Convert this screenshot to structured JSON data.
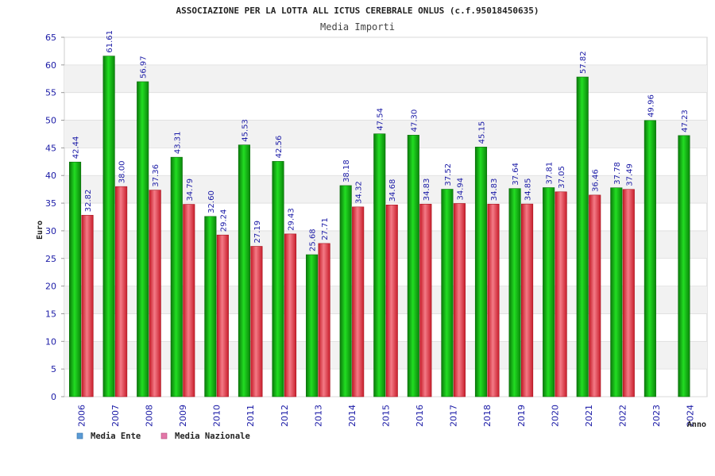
{
  "chart_data": {
    "type": "bar",
    "title": "ASSOCIAZIONE PER LA LOTTA ALL ICTUS CEREBRALE ONLUS (c.f.95018450635)",
    "subtitle": "Media Importi",
    "xlabel": "Anno",
    "ylabel": "Euro",
    "ylim": [
      0,
      65
    ],
    "yticks": [
      "0",
      "5",
      "10",
      "15",
      "20",
      "25",
      "30",
      "35",
      "40",
      "45",
      "50",
      "55",
      "60",
      "65"
    ],
    "categories": [
      "2006",
      "2007",
      "2008",
      "2009",
      "2010",
      "2011",
      "2012",
      "2013",
      "2014",
      "2015",
      "2016",
      "2017",
      "2018",
      "2019",
      "2020",
      "2021",
      "2022",
      "2023",
      "2024"
    ],
    "series": [
      {
        "name": "Media Ente",
        "color": "#16b816",
        "legend_color": "#5b9bd5",
        "values": [
          42.44,
          61.61,
          56.97,
          43.31,
          32.6,
          45.53,
          42.56,
          25.68,
          38.18,
          47.54,
          47.3,
          37.52,
          45.15,
          37.64,
          37.81,
          57.82,
          37.78,
          49.96,
          47.23
        ],
        "labels": [
          "42.44",
          "61.61",
          "56.97",
          "43.31",
          "32.60",
          "45.53",
          "42.56",
          "25.68",
          "38.18",
          "47.54",
          "47.30",
          "37.52",
          "45.15",
          "37.64",
          "37.81",
          "57.82",
          "37.78",
          "49.96",
          "47.23"
        ]
      },
      {
        "name": "Media Nazionale",
        "color": "#e8303e",
        "legend_color": "#e377a8",
        "values": [
          32.82,
          38.0,
          37.36,
          34.79,
          29.24,
          27.19,
          29.43,
          27.71,
          34.32,
          34.68,
          34.83,
          34.94,
          34.83,
          34.85,
          37.05,
          36.46,
          37.49,
          null,
          null
        ],
        "labels": [
          "32.82",
          "38.00",
          "37.36",
          "34.79",
          "29.24",
          "27.19",
          "29.43",
          "27.71",
          "34.32",
          "34.68",
          "34.83",
          "34.94",
          "34.83",
          "34.85",
          "37.05",
          "36.46",
          "37.49",
          "",
          ""
        ]
      }
    ],
    "grid": true,
    "grid_bands": true,
    "legend_position": "bottom-left",
    "colors": {
      "axis_text": "#1a1aa6",
      "title_text": "#222222",
      "band": "#f2f2f2",
      "gridline": "#dddddd",
      "label_text": "#1a1aa6"
    }
  }
}
